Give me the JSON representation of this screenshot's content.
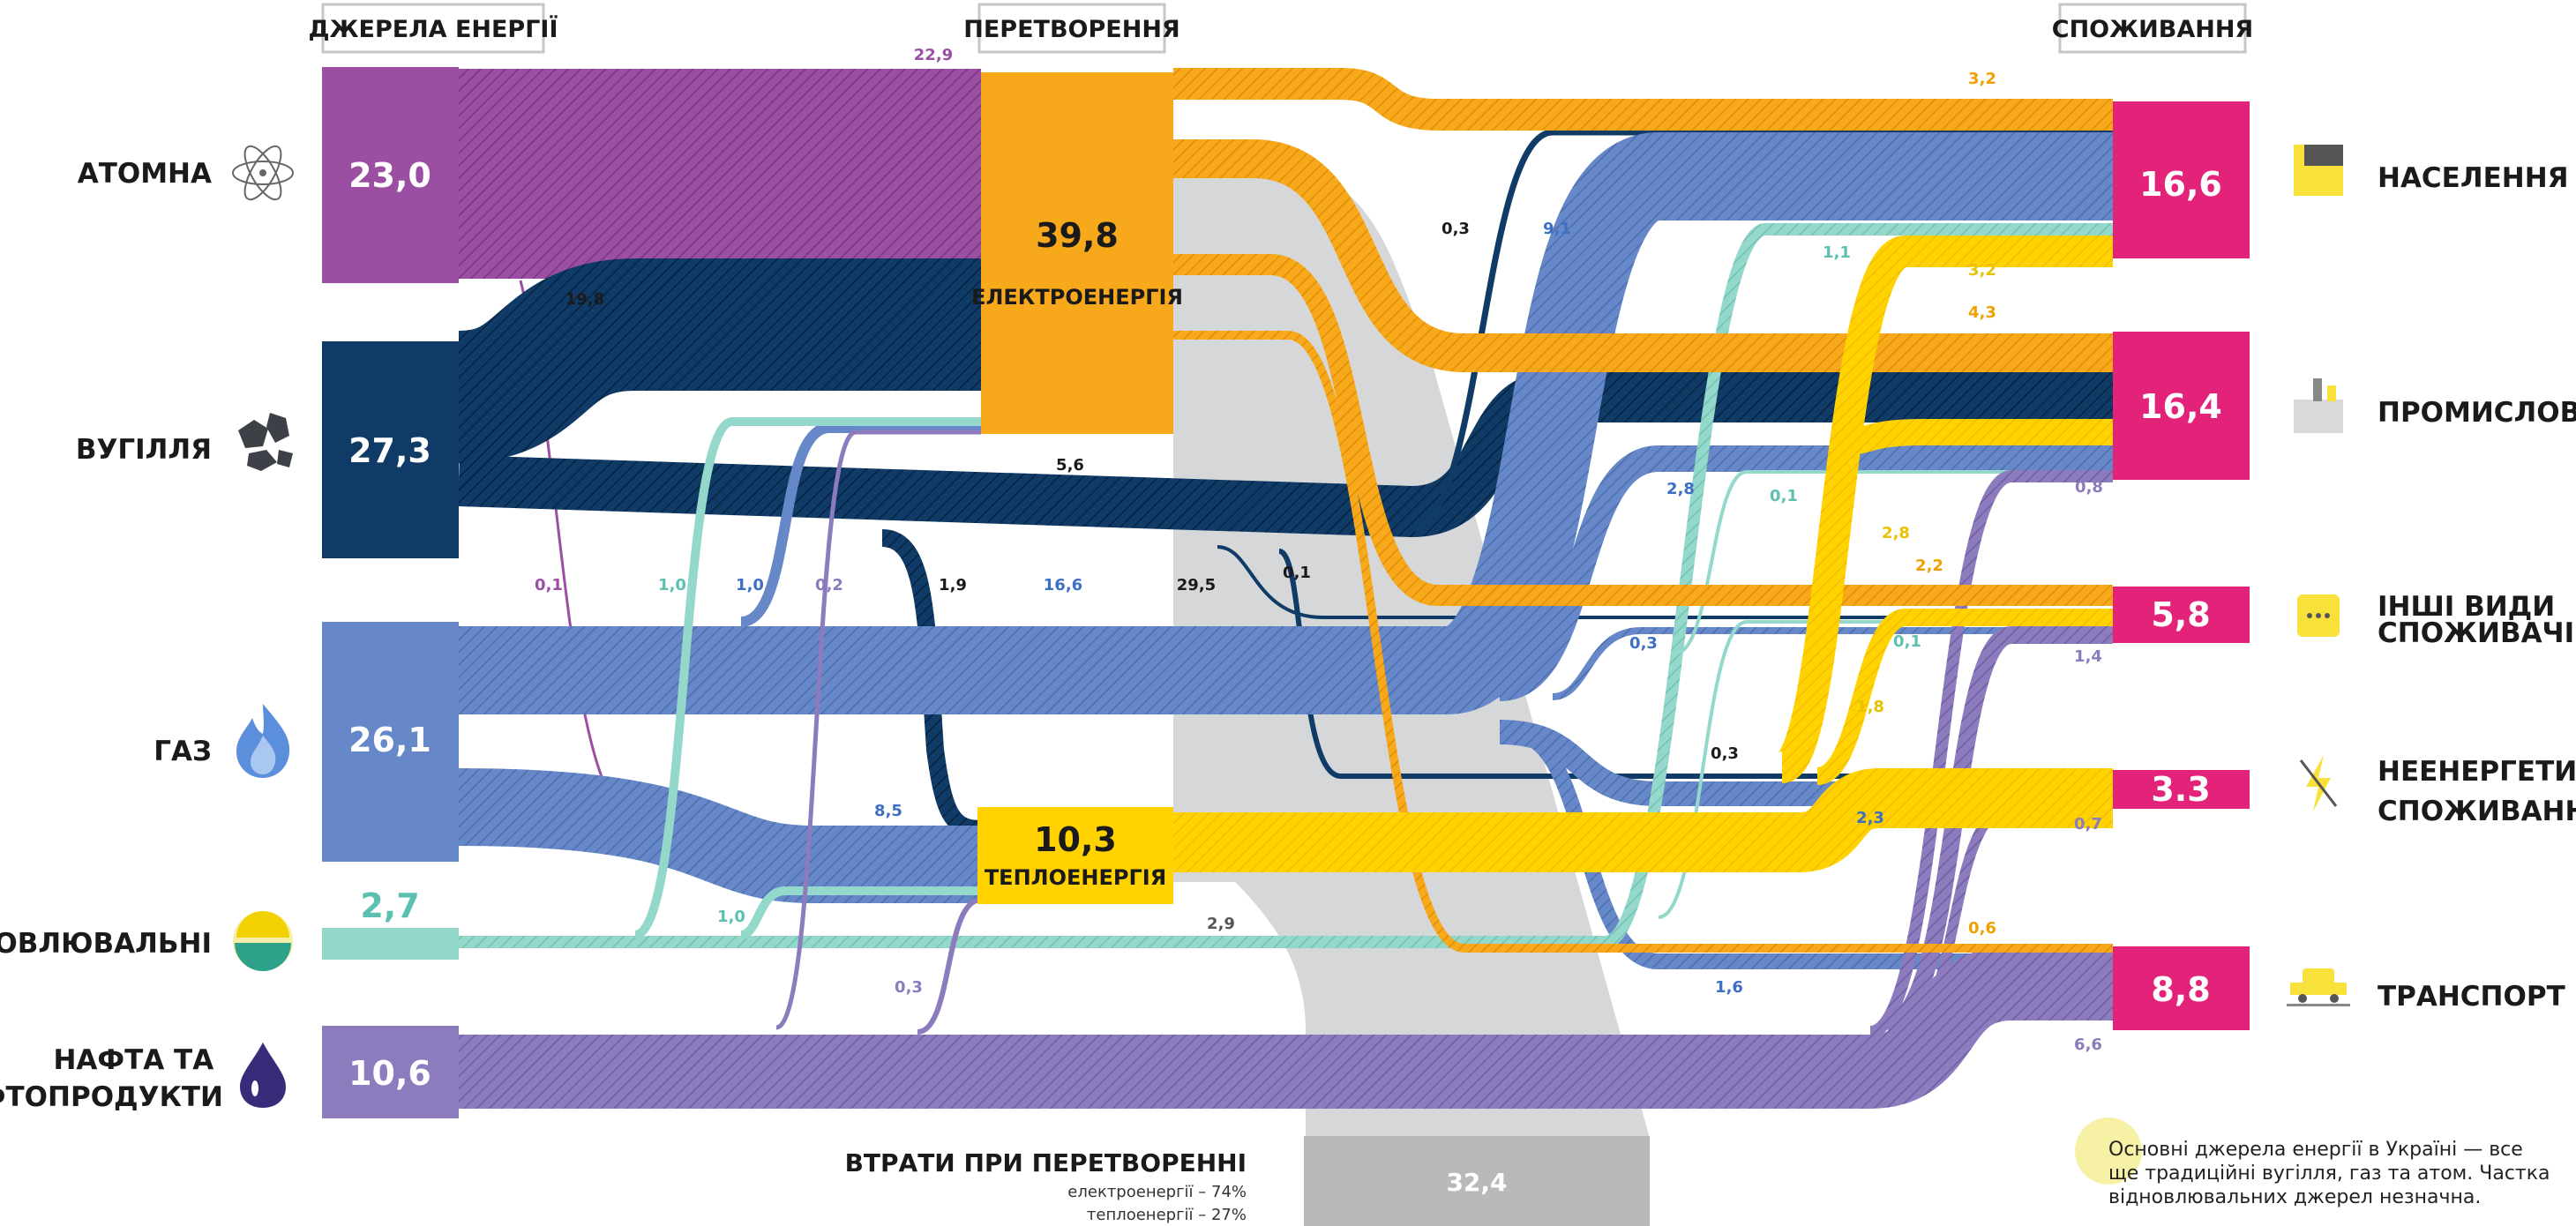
{
  "headers": {
    "sources": "ДЖЕРЕЛА ЕНЕРГІЇ",
    "conversion": "ПЕРЕТВОРЕННЯ",
    "consumption": "СПОЖИВАННЯ"
  },
  "sources": [
    {
      "id": "nuclear",
      "label": "АТОМНА",
      "value": "23,0",
      "color": "#9b4fa2",
      "icon": "atom-icon"
    },
    {
      "id": "coal",
      "label": "ВУГІЛЛЯ",
      "value": "27,3",
      "color": "#0f3b66",
      "icon": "coal-icon"
    },
    {
      "id": "gas",
      "label": "ГАЗ",
      "value": "26,1",
      "color": "#6688c8",
      "icon": "flame-icon"
    },
    {
      "id": "renewables",
      "label": "ВІДНОВЛЮВАЛЬНІ",
      "value": "2,7",
      "color": "#93d8ca",
      "icon": "sun-icon"
    },
    {
      "id": "oil",
      "label": "НАФТА ТА НАФТОПРОДУКТИ",
      "value": "10,6",
      "color": "#8c7bbd",
      "icon": "oil-drop-icon"
    }
  ],
  "conversion": [
    {
      "id": "electricity",
      "label": "ЕЛЕКТРОЕНЕРГІЯ",
      "value": "39,8",
      "color": "#f7a81b"
    },
    {
      "id": "heat",
      "label": "ТЕПЛОЕНЕРГІЯ",
      "value": "10,3",
      "color": "#ffd200"
    }
  ],
  "losses": {
    "value": "32,4",
    "title": "ВТРАТИ ПРИ ПЕРЕТВОРЕННІ",
    "electricity": "електроенергії – 74%",
    "heat": "теплоенергії – 27%",
    "color": "#b8b9bb"
  },
  "consumers": [
    {
      "id": "households",
      "label": "НАСЕЛЕННЯ",
      "value": "16,6",
      "icon": "house-icon"
    },
    {
      "id": "industry",
      "label": "ПРОМИСЛОВІСТЬ",
      "value": "16,4",
      "icon": "factory-icon"
    },
    {
      "id": "other",
      "label": "ІНШІ ВИДИ СПОЖИВАЧІВ",
      "value": "5,8",
      "icon": "dots-icon"
    },
    {
      "id": "non_energy",
      "label": "НЕЕНЕРГЕТИЧНЕ СПОЖИВАННЯ",
      "value": "3.3",
      "icon": "no-lightning-icon"
    },
    {
      "id": "transport",
      "label": "ТРАНСПОРТ",
      "value": "8,8",
      "icon": "car-icon"
    }
  ],
  "consumer_color": "#e3237a",
  "flows": [
    {
      "from": "nuclear",
      "to": "electricity",
      "value": "22,9"
    },
    {
      "from": "nuclear",
      "to": "heat",
      "value": "0,1"
    },
    {
      "from": "coal",
      "to": "electricity",
      "value": "19,8"
    },
    {
      "from": "coal",
      "to": "industry",
      "value": "5,6"
    },
    {
      "from": "coal",
      "to": "heat",
      "value": "1,9"
    },
    {
      "from": "coal",
      "to": "households",
      "value": "0,3"
    },
    {
      "from": "coal",
      "to": "other",
      "value": "0,1"
    },
    {
      "from": "coal",
      "to": "non_energy",
      "value": "0,3"
    },
    {
      "from": "gas",
      "to": "electricity",
      "value": "1,0"
    },
    {
      "from": "gas",
      "to": "heat",
      "value": "8,5"
    },
    {
      "from": "gas",
      "to": "households",
      "value": "9,1"
    },
    {
      "from": "gas",
      "to": "industry",
      "value": "2,8"
    },
    {
      "from": "gas",
      "to": "other",
      "value": "0,3"
    },
    {
      "from": "gas",
      "to": "non_energy",
      "value": "2,3"
    },
    {
      "from": "gas",
      "to": "transport",
      "value": "1,6"
    },
    {
      "from": "gas",
      "to": "total",
      "value": "16,6"
    },
    {
      "from": "renewables",
      "to": "electricity",
      "value": "1,0"
    },
    {
      "from": "renewables",
      "to": "heat",
      "value": "1,0"
    },
    {
      "from": "renewables",
      "to": "households",
      "value": "1,1"
    },
    {
      "from": "renewables",
      "to": "industry",
      "value": "0,1"
    },
    {
      "from": "renewables",
      "to": "other",
      "value": "0,1"
    },
    {
      "from": "oil",
      "to": "electricity",
      "value": "0,2"
    },
    {
      "from": "oil",
      "to": "heat",
      "value": "0,3"
    },
    {
      "from": "oil",
      "to": "industry",
      "value": "0,8"
    },
    {
      "from": "oil",
      "to": "other",
      "value": "1,4"
    },
    {
      "from": "oil",
      "to": "non_energy",
      "value": "0,7"
    },
    {
      "from": "oil",
      "to": "transport",
      "value": "6,6"
    },
    {
      "from": "electricity",
      "to": "losses",
      "value": "29,5"
    },
    {
      "from": "electricity",
      "to": "households",
      "value": "3,2"
    },
    {
      "from": "electricity",
      "to": "industry",
      "value": "4,3"
    },
    {
      "from": "electricity",
      "to": "other",
      "value": "2,2"
    },
    {
      "from": "electricity",
      "to": "transport",
      "value": "0,6"
    },
    {
      "from": "heat",
      "to": "losses",
      "value": "2,9"
    },
    {
      "from": "heat",
      "to": "households",
      "value": "3,2"
    },
    {
      "from": "heat",
      "to": "industry",
      "value": "2,8"
    },
    {
      "from": "heat",
      "to": "other",
      "value": "1,8"
    }
  ],
  "note": {
    "line1": "Основні джерела енергії в Україні — все",
    "line2": "ще традиційні вугілля, газ та атом. Частка",
    "line3": "відновлювальних джерел незначна."
  }
}
